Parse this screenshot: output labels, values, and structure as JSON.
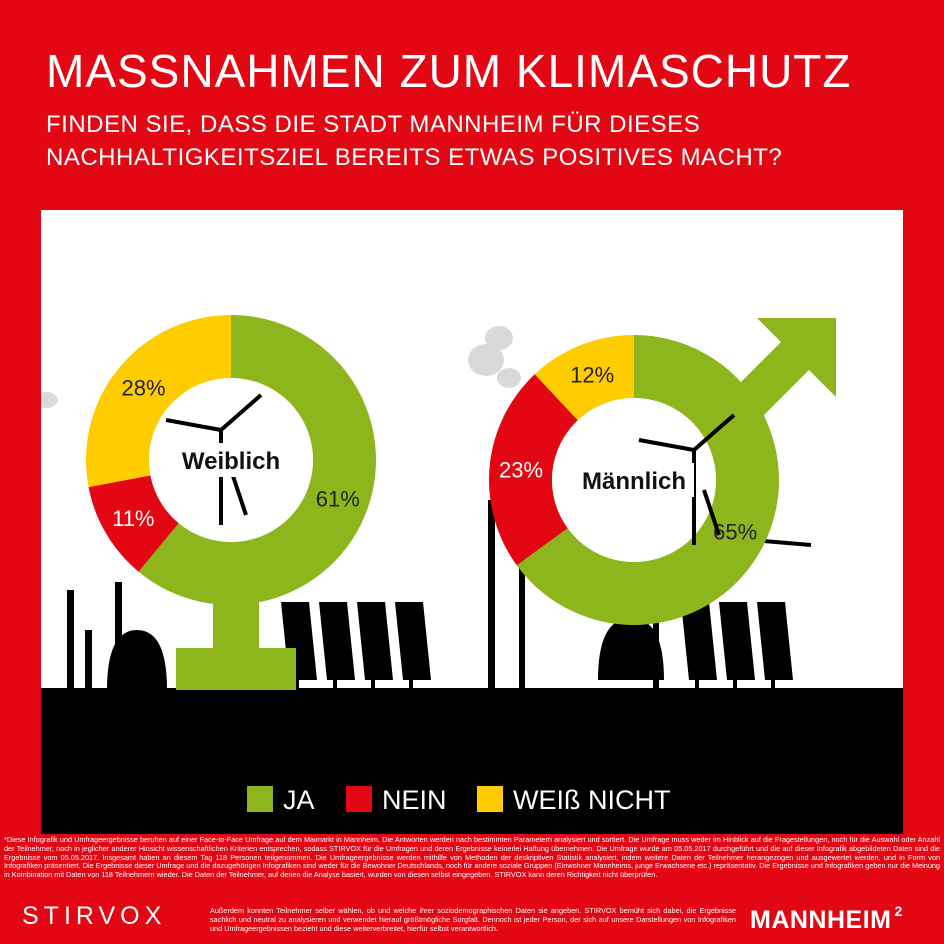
{
  "header": {
    "title": "MASSNAHMEN ZUM KLIMASCHUTZ",
    "subtitle_line1": "FINDEN SIE, DASS DIE STADT MANNHEIM FÜR DIESES",
    "subtitle_line2": "NACHHALTIGKEITSZIEL BEREITS ETWAS POSITIVES MACHT?"
  },
  "colors": {
    "brand_red": "#e30613",
    "ja": "#8cb61c",
    "nein": "#e30613",
    "weiss_nicht": "#ffcc00",
    "silhouette": "#000000"
  },
  "chart_data": [
    {
      "type": "pie",
      "donut": true,
      "center_label": "Weiblich",
      "categories": [
        "JA",
        "NEIN",
        "WEIß NICHT"
      ],
      "values": [
        61,
        11,
        28
      ],
      "labels": [
        "61%",
        "11%",
        "28%"
      ]
    },
    {
      "type": "pie",
      "donut": true,
      "center_label": "Männlich",
      "categories": [
        "JA",
        "NEIN",
        "WEIß NICHT"
      ],
      "values": [
        65,
        23,
        12
      ],
      "labels": [
        "65%",
        "23%",
        "12%"
      ]
    }
  ],
  "legend": {
    "placement": "bottom-center",
    "items": [
      "JA",
      "NEIN",
      "WEIß NICHT"
    ]
  },
  "footnote": {
    "main": "*Diese Infografik und Umfrageergebnisse beruhen auf einer Face-to-Face Umfrage auf dem Maimarkt in Mannheim. Die Antworten werden nach bestimmten Parametern analysiert und sortiert. Die Umfrage muss weder im Hinblick auf die Fragestellungen, noch für die Auswahl oder Anzahl der Teilnehmer, noch in jeglicher anderer Hinsicht wissenschaftlichen Kriterien entsprechen, sodass STIRVOX für die Umfragen und deren Ergebnisse keinerlei Haftung übernehmen. Die Umfrage wurde am 05.05.2017 durchgeführt und die auf dieser Infografik abgebildeten Daten sind die Ergebnisse vom 05.05.2017. Insgesamt haben an diesem Tag 118 Personen teilgenommen. Die Umfrageergebnisse werden mithilfe von Methoden der deskriptiven Statistik analysiert, indem weitere Daten der Teilnehmer herangezogen und ausgewertet werden, und in Form von Infografiken präsentiert. Die Ergebnisse dieser Umfrage und die dazugehörigen Infografiken sind weder für die Bewohner Deutschlands, noch für andere soziale Gruppen (Einwohner Mannheims, junge Erwachsene etc.) repräsentativ. Die Ergebnisse und Infografiken geben nur die Meinung in Kombination mit Daten von 118 Teilnehmern wieder. Die Daten der Teilnehmer, auf denen die Analyse basiert, wurden von diesen selbst eingegeben. STIRVOX kann deren Richtigkeit nicht überprüfen.",
    "tail": "Außerdem konnten Teilnehmer selber wählen, ob und welche ihrer soziodemographischen Daten sie angeben. STIRVOX bemüht sich dabei, die Ergebnisse sachlich und neutral zu analysieren und verwendet hierauf größtmögliche Sorgfalt. Dennoch ist jeder Person, der sich auf unsere Darstellungen von Infografiken und Umfrageergebnissen bezieht und diese weiterverbreitet, hierfür selbst verantwortlich."
  },
  "brands": {
    "left": "STIRVOX",
    "right": "MANNHEIM",
    "right_sup": "2"
  }
}
